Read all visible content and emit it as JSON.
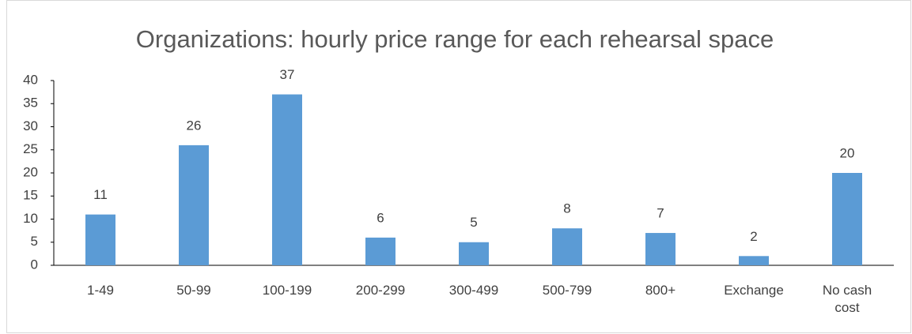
{
  "chart_data": {
    "type": "bar",
    "title": "Organizations: hourly price range for each rehearsal space",
    "categories": [
      "1-49",
      "50-99",
      "100-199",
      "200-299",
      "300-499",
      "500-799",
      "800+",
      "Exchange",
      "No cash cost"
    ],
    "values": [
      11,
      26,
      37,
      6,
      5,
      8,
      7,
      2,
      20
    ],
    "color": "#5b9bd5",
    "ylim": [
      0,
      40
    ],
    "yticks": [
      0,
      5,
      10,
      15,
      20,
      25,
      30,
      35,
      40
    ],
    "grid": false
  }
}
